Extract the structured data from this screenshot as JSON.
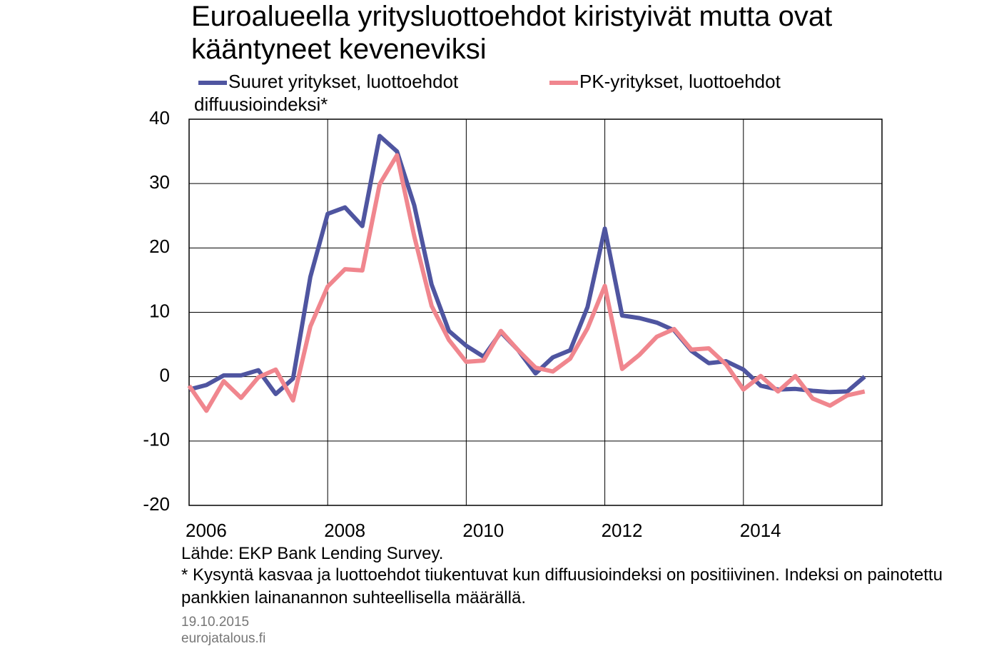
{
  "chart_data": {
    "type": "line",
    "title": "Euroalueella yritysluottoehdot kiristyivät mutta ovat kääntyneet keveneviksi",
    "ylabel": "diffuusioindeksi*",
    "source": "Lähde: EKP Bank Lending Survey.",
    "note": "* Kysyntä kasvaa ja luottoehdot tiukentuvat kun diffuusioindeksi on positiivinen. Indeksi on painotettu pankkien lainanannon suhteellisella määrällä.",
    "date": "19.10.2015",
    "site": "eurojatalous.fi",
    "x": [
      2006,
      2006.25,
      2006.5,
      2006.75,
      2007,
      2007.25,
      2007.5,
      2007.75,
      2008,
      2008.25,
      2008.5,
      2008.75,
      2009,
      2009.25,
      2009.5,
      2009.75,
      2010,
      2010.25,
      2010.5,
      2010.75,
      2011,
      2011.25,
      2011.5,
      2011.75,
      2012,
      2012.25,
      2012.5,
      2012.75,
      2013,
      2013.25,
      2013.5,
      2013.75,
      2014,
      2014.25,
      2014.5,
      2014.75,
      2015,
      2015.25,
      2015.5,
      2015.75
    ],
    "series": [
      {
        "name": "Suuret yritykset, luottoehdot",
        "color": "#4f55a0",
        "values": [
          -2.0,
          -1.3,
          0.2,
          0.2,
          1.0,
          -2.7,
          -0.3,
          15.5,
          25.3,
          26.3,
          23.4,
          37.4,
          35.0,
          26.6,
          14.3,
          7.1,
          4.8,
          3.1,
          6.9,
          4.1,
          0.5,
          3.0,
          4.1,
          10.8,
          23.0,
          9.5,
          9.1,
          8.4,
          7.2,
          4.0,
          2.1,
          2.4,
          1.1,
          -1.4,
          -2.0,
          -1.9,
          -2.2,
          -2.4,
          -2.3,
          0.0
        ]
      },
      {
        "name": "PK-yritykset, luottoehdot",
        "color": "#f0868e",
        "values": [
          -1.4,
          -5.3,
          -0.7,
          -3.3,
          -0.1,
          1.1,
          -3.7,
          7.8,
          14.0,
          16.7,
          16.5,
          29.9,
          34.4,
          21.8,
          11.0,
          5.7,
          2.3,
          2.5,
          7.1,
          4.1,
          1.4,
          0.8,
          2.8,
          7.5,
          14.1,
          1.2,
          3.4,
          6.2,
          7.4,
          4.2,
          4.4,
          1.9,
          -2.0,
          0.1,
          -2.3,
          0.1,
          -3.4,
          -4.5,
          -2.9,
          -2.3
        ]
      }
    ],
    "xlim": [
      2006,
      2016
    ],
    "xticks": [
      2006,
      2008,
      2010,
      2012,
      2014
    ],
    "ylim": [
      -20,
      40
    ],
    "yticks": [
      -20,
      -10,
      0,
      10,
      20,
      30,
      40
    ],
    "grid": true
  }
}
